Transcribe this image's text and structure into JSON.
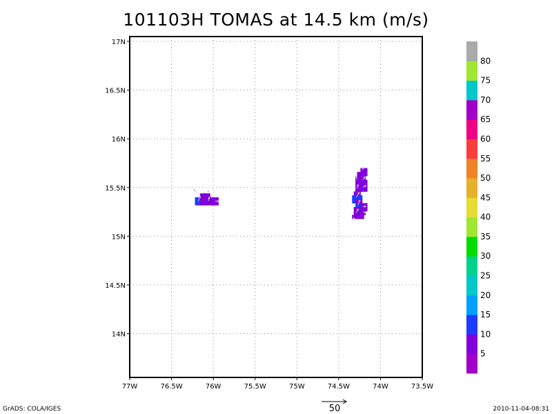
{
  "title": "101103H TOMAS at 14.5 km (m/s)",
  "footer": {
    "left": "GrADS: COLA/IGES",
    "right": "2010-11-04-08:31"
  },
  "vector_reference": {
    "value": 50,
    "label": "50"
  },
  "chart_data": {
    "type": "heatmap",
    "title": "101103H TOMAS at 14.5 km (m/s)",
    "xlabel": "",
    "ylabel": "",
    "xlim": [
      -77.0,
      -73.5
    ],
    "ylim": [
      13.55,
      17.05
    ],
    "x_ticks": [
      {
        "value": -77.0,
        "label": "77W"
      },
      {
        "value": -76.5,
        "label": "76.5W"
      },
      {
        "value": -76.0,
        "label": "76W"
      },
      {
        "value": -75.5,
        "label": "75.5W"
      },
      {
        "value": -75.0,
        "label": "75W"
      },
      {
        "value": -74.5,
        "label": "74.5W"
      },
      {
        "value": -74.0,
        "label": "74W"
      },
      {
        "value": -73.5,
        "label": "73.5W"
      }
    ],
    "y_ticks": [
      {
        "value": 14.0,
        "label": "14N"
      },
      {
        "value": 14.5,
        "label": "14.5N"
      },
      {
        "value": 15.0,
        "label": "15N"
      },
      {
        "value": 15.5,
        "label": "15.5N"
      },
      {
        "value": 16.0,
        "label": "16N"
      },
      {
        "value": 16.5,
        "label": "16.5N"
      },
      {
        "value": 17.0,
        "label": "17N"
      }
    ],
    "grid": true,
    "colorbar": {
      "levels": [
        5,
        10,
        15,
        20,
        25,
        30,
        35,
        40,
        45,
        50,
        55,
        60,
        65,
        70,
        75,
        80
      ],
      "colors": [
        "#a000c8",
        "#8200dc",
        "#1e3cff",
        "#00a0ff",
        "#00c8c8",
        "#00d28c",
        "#00dc00",
        "#a0e632",
        "#e6dc32",
        "#e6af2d",
        "#f08228",
        "#fa3c3c",
        "#f00082",
        "#a000c8",
        "#00c8c8",
        "#a0e632",
        "#aaaaaa"
      ]
    },
    "cell_size_deg": [
      0.08,
      0.04
    ],
    "cells": [
      {
        "lon": -76.12,
        "lat": 15.42,
        "value": 7
      },
      {
        "lon": -76.08,
        "lat": 15.42,
        "value": 7
      },
      {
        "lon": -76.18,
        "lat": 15.38,
        "value": 12
      },
      {
        "lon": -76.12,
        "lat": 15.38,
        "value": 7
      },
      {
        "lon": -76.06,
        "lat": 15.38,
        "value": 7
      },
      {
        "lon": -75.98,
        "lat": 15.38,
        "value": 7
      },
      {
        "lon": -76.18,
        "lat": 15.34,
        "value": 12
      },
      {
        "lon": -76.12,
        "lat": 15.34,
        "value": 7
      },
      {
        "lon": -76.04,
        "lat": 15.34,
        "value": 7
      },
      {
        "lon": -75.98,
        "lat": 15.34,
        "value": 7
      },
      {
        "lon": -74.2,
        "lat": 15.68,
        "value": 7
      },
      {
        "lon": -74.24,
        "lat": 15.64,
        "value": 7
      },
      {
        "lon": -74.2,
        "lat": 15.64,
        "value": 7
      },
      {
        "lon": -74.26,
        "lat": 15.6,
        "value": 7
      },
      {
        "lon": -74.22,
        "lat": 15.6,
        "value": 7
      },
      {
        "lon": -74.26,
        "lat": 15.56,
        "value": 7
      },
      {
        "lon": -74.2,
        "lat": 15.56,
        "value": 7
      },
      {
        "lon": -74.26,
        "lat": 15.52,
        "value": 7
      },
      {
        "lon": -74.2,
        "lat": 15.52,
        "value": 7
      },
      {
        "lon": -74.26,
        "lat": 15.48,
        "value": 7
      },
      {
        "lon": -74.2,
        "lat": 15.48,
        "value": 7
      },
      {
        "lon": -74.28,
        "lat": 15.44,
        "value": 7
      },
      {
        "lon": -74.3,
        "lat": 15.4,
        "value": 12
      },
      {
        "lon": -74.26,
        "lat": 15.4,
        "value": 12
      },
      {
        "lon": -74.3,
        "lat": 15.36,
        "value": 12
      },
      {
        "lon": -74.26,
        "lat": 15.36,
        "value": 7
      },
      {
        "lon": -74.26,
        "lat": 15.32,
        "value": 12
      },
      {
        "lon": -74.2,
        "lat": 15.32,
        "value": 7
      },
      {
        "lon": -74.28,
        "lat": 15.28,
        "value": 7
      },
      {
        "lon": -74.2,
        "lat": 15.28,
        "value": 7
      },
      {
        "lon": -74.28,
        "lat": 15.24,
        "value": 7
      },
      {
        "lon": -74.22,
        "lat": 15.24,
        "value": 7
      },
      {
        "lon": -74.3,
        "lat": 15.2,
        "value": 7
      },
      {
        "lon": -74.24,
        "lat": 15.2,
        "value": 7
      }
    ],
    "vectors": [
      {
        "lon": -76.2,
        "lat": 15.45,
        "u": -3,
        "v": 3
      },
      {
        "lon": -76.06,
        "lat": 15.44,
        "u": 0,
        "v": 3
      },
      {
        "lon": -76.18,
        "lat": 15.36,
        "u": 2,
        "v": 5
      },
      {
        "lon": -76.06,
        "lat": 15.36,
        "u": 1,
        "v": 4
      },
      {
        "lon": -75.98,
        "lat": 15.36,
        "u": 4,
        "v": 0
      },
      {
        "lon": -74.21,
        "lat": 15.68,
        "u": 0,
        "v": 3
      },
      {
        "lon": -74.28,
        "lat": 15.58,
        "u": -1,
        "v": 4
      },
      {
        "lon": -74.21,
        "lat": 15.58,
        "u": 2,
        "v": 3
      },
      {
        "lon": -74.28,
        "lat": 15.49,
        "u": 1,
        "v": 4
      },
      {
        "lon": -74.21,
        "lat": 15.5,
        "u": 3,
        "v": 2
      },
      {
        "lon": -74.29,
        "lat": 15.4,
        "u": 3,
        "v": 5
      },
      {
        "lon": -74.27,
        "lat": 15.32,
        "u": 2,
        "v": 5
      },
      {
        "lon": -74.21,
        "lat": 15.3,
        "u": 3,
        "v": 1
      },
      {
        "lon": -74.29,
        "lat": 15.24,
        "u": 2,
        "v": 4
      },
      {
        "lon": -74.21,
        "lat": 15.25,
        "u": 3,
        "v": -1
      },
      {
        "lon": -74.31,
        "lat": 15.16,
        "u": -1,
        "v": 3
      }
    ]
  }
}
